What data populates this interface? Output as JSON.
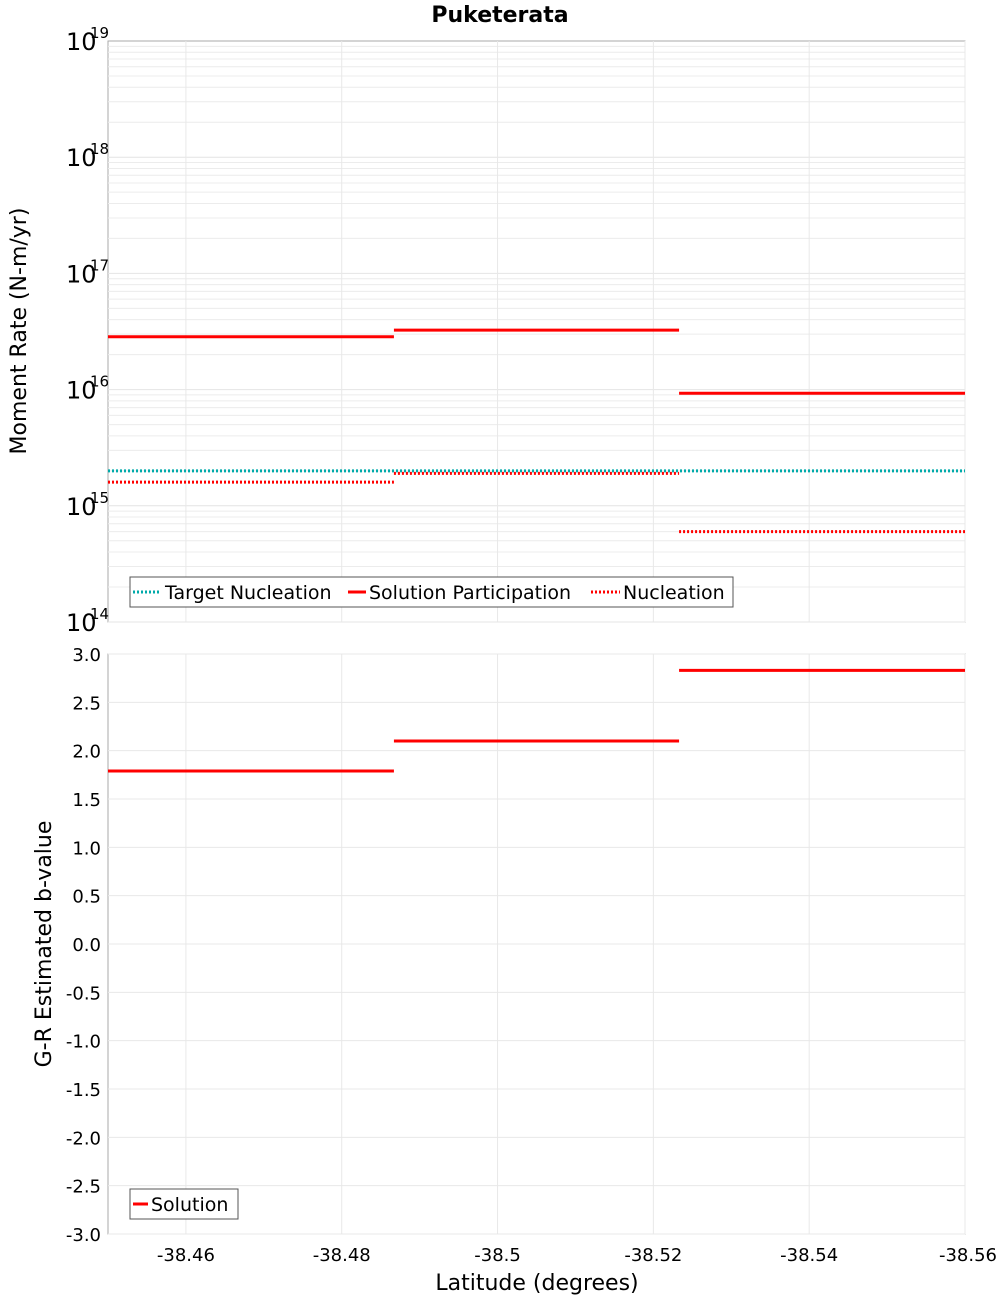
{
  "chart_data": [
    {
      "type": "line",
      "title": "Puketerata",
      "ylabel": "Moment Rate (N-m/yr)",
      "xlabel": "",
      "xlim": [
        -38.45,
        -38.56
      ],
      "ylim": [
        100000000000000.0,
        1e+19
      ],
      "yscale": "log",
      "grid": true,
      "legend_position": "bottom-left",
      "y_tick_labels": [
        {
          "base": "10",
          "exp": "19",
          "value": 1e+19
        },
        {
          "base": "10",
          "exp": "18",
          "value": 1e+18
        },
        {
          "base": "10",
          "exp": "17",
          "value": 1e+17
        },
        {
          "base": "10",
          "exp": "16",
          "value": 1e+16
        },
        {
          "base": "10",
          "exp": "15",
          "value": 1000000000000000.0
        },
        {
          "base": "10",
          "exp": "14",
          "value": 100000000000000.0
        }
      ],
      "series": [
        {
          "name": "Target Nucleation",
          "color": "#00aaaa",
          "style": "dotted",
          "segments": [
            {
              "x": [
                -38.45,
                -38.56
              ],
              "y": 2000000000000000.0
            }
          ]
        },
        {
          "name": "Solution Participation",
          "color": "#ff0000",
          "style": "solid",
          "segments": [
            {
              "x": [
                -38.45,
                -38.4867
              ],
              "y": 2.85e+16
            },
            {
              "x": [
                -38.4867,
                -38.5233
              ],
              "y": 3.25e+16
            },
            {
              "x": [
                -38.5233,
                -38.56
              ],
              "y": 9300000000000000.0
            }
          ]
        },
        {
          "name": "Nucleation",
          "color": "#ff0000",
          "style": "dotted",
          "segments": [
            {
              "x": [
                -38.45,
                -38.4867
              ],
              "y": 1600000000000000.0
            },
            {
              "x": [
                -38.4867,
                -38.5233
              ],
              "y": 1900000000000000.0
            },
            {
              "x": [
                -38.5233,
                -38.56
              ],
              "y": 600000000000000.0
            }
          ]
        }
      ]
    },
    {
      "type": "line",
      "title": "",
      "xlabel": "Latitude (degrees)",
      "ylabel": "G-R Estimated b-value",
      "xlim": [
        -38.45,
        -38.56
      ],
      "ylim": [
        -3.0,
        3.0
      ],
      "grid": true,
      "legend_position": "bottom-left",
      "x_tick_labels": [
        "-38.46",
        "-38.48",
        "-38.5",
        "-38.52",
        "-38.54",
        "-38.56"
      ],
      "x_tick_values": [
        -38.46,
        -38.48,
        -38.5,
        -38.52,
        -38.54,
        -38.56
      ],
      "y_tick_labels": [
        "3.0",
        "2.5",
        "2.0",
        "1.5",
        "1.0",
        "0.5",
        "0.0",
        "-0.5",
        "-1.0",
        "-1.5",
        "-2.0",
        "-2.5",
        "-3.0"
      ],
      "y_tick_values": [
        3.0,
        2.5,
        2.0,
        1.5,
        1.0,
        0.5,
        0.0,
        -0.5,
        -1.0,
        -1.5,
        -2.0,
        -2.5,
        -3.0
      ],
      "series": [
        {
          "name": "Solution",
          "color": "#ff0000",
          "style": "solid",
          "segments": [
            {
              "x": [
                -38.45,
                -38.4867
              ],
              "y": 1.79
            },
            {
              "x": [
                -38.4867,
                -38.5233
              ],
              "y": 2.1
            },
            {
              "x": [
                -38.5233,
                -38.56
              ],
              "y": 2.83
            }
          ]
        }
      ]
    }
  ]
}
